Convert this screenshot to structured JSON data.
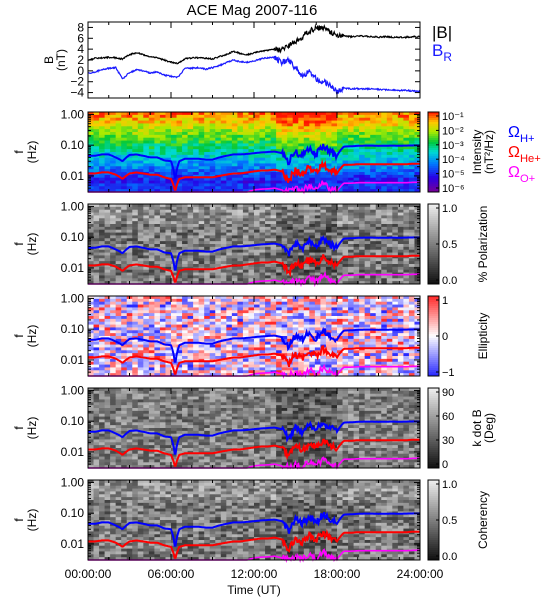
{
  "title": "ACE Mag 2007-116",
  "colors": {
    "axis": "#000000",
    "B_total": "#000000",
    "B_R": "#1a1aff",
    "cyclotron_H": "#0000ff",
    "cyclotron_He": "#ff0000",
    "cyclotron_O": "#ff00ff"
  },
  "x_axis": {
    "label": "Time (UT)",
    "range_hours": [
      0,
      24
    ],
    "tick_hours": [
      0,
      6,
      12,
      18,
      24
    ],
    "tick_labels": [
      "00:00:00",
      "06:00:00",
      "12:00:00",
      "18:00:00",
      "24:00:00"
    ]
  },
  "legend": {
    "top": [
      {
        "name": "|B|",
        "color": "#000000"
      },
      {
        "name": "B",
        "sub": "R",
        "color": "#1a1aff"
      }
    ],
    "cyclotron": [
      {
        "name": "Ω",
        "sub": "H+",
        "color": "#0000ff"
      },
      {
        "name": "Ω",
        "sub": "He+",
        "color": "#ff0000"
      },
      {
        "name": "Ω",
        "sub": "O+",
        "color": "#ff00ff"
      }
    ]
  },
  "chart_data": [
    {
      "type": "line",
      "ylabel": [
        "B",
        "(nT)"
      ],
      "ylim": [
        -5,
        9
      ],
      "yticks": [
        -4,
        -2,
        0,
        2,
        4,
        6,
        8
      ],
      "ytick_labels": [
        "−4",
        "−2",
        "0",
        "2",
        "4",
        "6",
        "8"
      ],
      "series": [
        {
          "name": "|B|",
          "color": "#000000",
          "x": [
            0,
            0.5,
            1,
            1.5,
            2,
            2.5,
            3,
            3.5,
            4,
            4.5,
            5,
            5.5,
            6,
            6.5,
            7,
            7.5,
            8,
            8.5,
            9,
            9.5,
            10,
            10.5,
            11,
            11.5,
            12,
            12.5,
            13,
            13.5,
            14,
            14.5,
            15,
            15.5,
            16,
            16.5,
            17,
            17.5,
            18,
            18.5,
            19,
            19.5,
            20,
            20.5,
            21,
            21.5,
            22,
            22.5,
            23,
            23.5,
            24
          ],
          "values": [
            2.0,
            2.3,
            2.4,
            2.5,
            2.4,
            2.2,
            3.0,
            3.3,
            3.0,
            2.6,
            2.4,
            2.0,
            1.6,
            1.4,
            2.2,
            2.4,
            2.4,
            2.3,
            2.2,
            2.6,
            3.0,
            3.6,
            3.2,
            3.0,
            3.3,
            3.6,
            3.8,
            4.0,
            3.8,
            4.6,
            5.5,
            6.2,
            7.4,
            7.8,
            8.0,
            7.2,
            6.4,
            6.4,
            6.3,
            6.4,
            6.4,
            6.3,
            6.2,
            6.3,
            6.2,
            6.2,
            6.2,
            6.3,
            6.3
          ]
        },
        {
          "name": "B",
          "color": "#1a1aff",
          "x": [
            0,
            0.5,
            1,
            1.5,
            2,
            2.5,
            3,
            3.5,
            4,
            4.5,
            5,
            5.5,
            6,
            6.5,
            7,
            7.5,
            8,
            8.5,
            9,
            9.5,
            10,
            10.5,
            11,
            11.5,
            12,
            12.5,
            13,
            13.5,
            14,
            14.5,
            15,
            15.5,
            16,
            16.5,
            17,
            17.5,
            18,
            18.5,
            19,
            19.5,
            20,
            20.5,
            21,
            21.5,
            22,
            22.5,
            23,
            23.5,
            24
          ],
          "values": [
            -0.5,
            -0.2,
            0.2,
            0.5,
            0.6,
            -1.5,
            -0.3,
            0.2,
            0.0,
            -0.4,
            -0.2,
            -0.8,
            -1.0,
            -1.2,
            0.5,
            0.5,
            0.6,
            0.3,
            0.6,
            1.0,
            1.5,
            2.0,
            1.7,
            1.6,
            1.8,
            2.2,
            2.4,
            2.5,
            1.5,
            2.0,
            0.5,
            -1.0,
            0.0,
            -1.5,
            -2.0,
            -2.5,
            -3.8,
            -3.2,
            -3.3,
            -3.3,
            -3.3,
            -3.3,
            -3.4,
            -3.5,
            -3.5,
            -3.6,
            -3.6,
            -3.7,
            -3.8
          ]
        }
      ]
    },
    {
      "type": "heatmap",
      "ylabel": [
        "f",
        "(Hz)"
      ],
      "ylim": [
        0.003,
        1.2
      ],
      "yscale": "log",
      "yticks": [
        0.01,
        0.1,
        1.0
      ],
      "ytick_labels": [
        "0.01",
        "0.10",
        "1.00"
      ],
      "colorbar": {
        "label": [
          "Intensity",
          "(nT²/Hz)"
        ],
        "scale": "log",
        "range": [
          1e-06,
          0.3
        ],
        "ticks": [
          "10⁻¹",
          "10⁻²",
          "10⁻³",
          "10⁻⁴",
          "10⁻⁵",
          "10⁻⁶"
        ],
        "colormap": "rainbow"
      }
    },
    {
      "type": "heatmap",
      "ylabel": [
        "f",
        "(Hz)"
      ],
      "ylim": [
        0.003,
        1.2
      ],
      "yscale": "log",
      "yticks": [
        0.01,
        0.1,
        1.0
      ],
      "ytick_labels": [
        "0.01",
        "0.10",
        "1.00"
      ],
      "colorbar": {
        "label": [
          "% Polarization"
        ],
        "range": [
          0,
          1
        ],
        "ticks": [
          "1.0",
          "0.5",
          "0.0"
        ],
        "colormap": "gray"
      }
    },
    {
      "type": "heatmap",
      "ylabel": [
        "f",
        "(Hz)"
      ],
      "ylim": [
        0.003,
        1.2
      ],
      "yscale": "log",
      "yticks": [
        0.01,
        0.1,
        1.0
      ],
      "ytick_labels": [
        "0.01",
        "0.10",
        "1.00"
      ],
      "colorbar": {
        "label": [
          "Ellipticity"
        ],
        "range": [
          -1,
          1
        ],
        "ticks": [
          "1",
          "0",
          "−1"
        ],
        "colormap": "blue-white-red"
      }
    },
    {
      "type": "heatmap",
      "ylabel": [
        "f",
        "(Hz)"
      ],
      "ylim": [
        0.003,
        1.2
      ],
      "yscale": "log",
      "yticks": [
        0.01,
        0.1,
        1.0
      ],
      "ytick_labels": [
        "0.01",
        "0.10",
        "1.00"
      ],
      "colorbar": {
        "label": [
          "k dot B",
          "(Deg)"
        ],
        "range": [
          0,
          90
        ],
        "ticks": [
          "90",
          "60",
          "30",
          "0"
        ],
        "colormap": "gray"
      }
    },
    {
      "type": "heatmap",
      "ylabel": [
        "f",
        "(Hz)"
      ],
      "ylim": [
        0.003,
        1.2
      ],
      "yscale": "log",
      "yticks": [
        0.01,
        0.1,
        1.0
      ],
      "ytick_labels": [
        "0.01",
        "0.10",
        "1.00"
      ],
      "colorbar": {
        "label": [
          "Coherency"
        ],
        "range": [
          0,
          1
        ],
        "ticks": [
          "1.0",
          "0.5",
          "0.0"
        ],
        "colormap": "gray"
      }
    }
  ],
  "cyclotron_freqs": {
    "x": [
      0,
      0.5,
      1,
      1.5,
      2,
      2.5,
      3,
      3.5,
      4,
      4.5,
      5,
      5.5,
      6,
      6.3,
      6.6,
      7,
      7.5,
      8,
      8.5,
      9,
      9.5,
      10,
      10.5,
      11,
      11.5,
      12,
      12.5,
      13,
      13.5,
      14,
      14.5,
      15,
      15.5,
      16,
      16.5,
      17,
      17.5,
      18,
      18.5,
      19,
      19.5,
      20,
      20.5,
      21,
      21.5,
      22,
      22.5,
      23,
      23.5,
      24
    ],
    "H+": [
      0.045,
      0.045,
      0.05,
      0.05,
      0.04,
      0.03,
      0.048,
      0.05,
      0.045,
      0.04,
      0.04,
      0.032,
      0.03,
      0.006,
      0.03,
      0.036,
      0.036,
      0.036,
      0.034,
      0.034,
      0.04,
      0.045,
      0.05,
      0.05,
      0.052,
      0.055,
      0.058,
      0.06,
      0.062,
      0.055,
      0.025,
      0.06,
      0.045,
      0.075,
      0.05,
      0.09,
      0.06,
      0.045,
      0.09,
      0.092,
      0.095,
      0.097,
      0.097,
      0.095,
      0.096,
      0.097,
      0.096,
      0.097,
      0.098,
      0.098
    ],
    "He+": [
      0.012,
      0.012,
      0.013,
      0.013,
      0.011,
      0.008,
      0.012,
      0.013,
      0.012,
      0.011,
      0.011,
      0.009,
      0.008,
      0.003,
      0.008,
      0.009,
      0.009,
      0.009,
      0.009,
      0.009,
      0.01,
      0.011,
      0.012,
      0.012,
      0.013,
      0.014,
      0.015,
      0.015,
      0.016,
      0.014,
      0.0065,
      0.015,
      0.011,
      0.019,
      0.013,
      0.023,
      0.015,
      0.012,
      0.023,
      0.023,
      0.024,
      0.024,
      0.024,
      0.024,
      0.024,
      0.024,
      0.024,
      0.024,
      0.025,
      0.025
    ],
    "O+": [
      0.003,
      0.003,
      0.003,
      0.003,
      0.003,
      0.003,
      0.003,
      0.003,
      0.003,
      0.003,
      0.003,
      0.003,
      0.003,
      0.003,
      0.003,
      0.003,
      0.003,
      0.003,
      0.003,
      0.003,
      0.003,
      0.003,
      0.003,
      0.003,
      0.003,
      0.0035,
      0.0037,
      0.0038,
      0.004,
      0.0035,
      0.0031,
      0.0038,
      0.0031,
      0.0047,
      0.0033,
      0.0058,
      0.0038,
      0.0031,
      0.0058,
      0.0058,
      0.006,
      0.006,
      0.006,
      0.006,
      0.006,
      0.006,
      0.006,
      0.006,
      0.0062,
      0.0062
    ]
  }
}
